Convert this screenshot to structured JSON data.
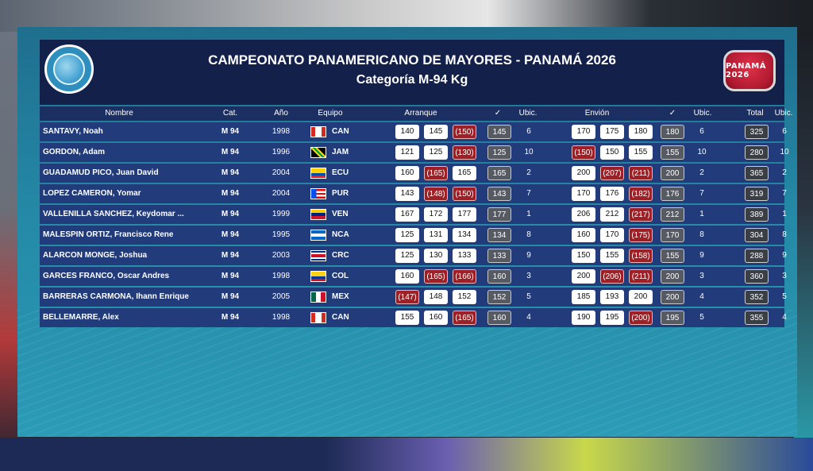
{
  "header": {
    "title": "CAMPEONATO PANAMERICANO DE MAYORES - PANAMÁ 2026",
    "subtitle": "Categoría M-94 Kg",
    "logo_right_text": "PANAMÁ 2026"
  },
  "columns": {
    "name": "Nombre",
    "cat": "Cat.",
    "year": "Año",
    "team": "Equipo",
    "snatch": "Arranque",
    "snatch_check": "✓",
    "snatch_rank": "Ubic.",
    "cj": "Envión",
    "cj_check": "✓",
    "cj_rank": "Ubic.",
    "total": "Total",
    "total_rank": "Ubic."
  },
  "colors": {
    "good_lift": "#ffffff",
    "no_lift": "#9e1f25",
    "best_lift": "#555a63"
  },
  "rows": [
    {
      "name": "SANTAVY, Noah",
      "cat": "M 94",
      "year": "1998",
      "team": "CAN",
      "flag": "can",
      "snatch": [
        {
          "v": "140",
          "ok": true
        },
        {
          "v": "145",
          "ok": true
        },
        {
          "v": "(150)",
          "ok": false
        }
      ],
      "snatch_best": "145",
      "snatch_rank": "6",
      "cj": [
        {
          "v": "170",
          "ok": true
        },
        {
          "v": "175",
          "ok": true
        },
        {
          "v": "180",
          "ok": true
        }
      ],
      "cj_best": "180",
      "cj_rank": "6",
      "total": "325",
      "total_rank": "6"
    },
    {
      "name": "GORDON, Adam",
      "cat": "M 94",
      "year": "1996",
      "team": "JAM",
      "flag": "jam",
      "snatch": [
        {
          "v": "121",
          "ok": true
        },
        {
          "v": "125",
          "ok": true
        },
        {
          "v": "(130)",
          "ok": false
        }
      ],
      "snatch_best": "125",
      "snatch_rank": "10",
      "cj": [
        {
          "v": "(150)",
          "ok": false
        },
        {
          "v": "150",
          "ok": true
        },
        {
          "v": "155",
          "ok": true
        }
      ],
      "cj_best": "155",
      "cj_rank": "10",
      "total": "280",
      "total_rank": "10"
    },
    {
      "name": "GUADAMUD PICO, Juan David",
      "cat": "M 94",
      "year": "2004",
      "team": "ECU",
      "flag": "ecu",
      "snatch": [
        {
          "v": "160",
          "ok": true
        },
        {
          "v": "(165)",
          "ok": false
        },
        {
          "v": "165",
          "ok": true
        }
      ],
      "snatch_best": "165",
      "snatch_rank": "2",
      "cj": [
        {
          "v": "200",
          "ok": true
        },
        {
          "v": "(207)",
          "ok": false
        },
        {
          "v": "(211)",
          "ok": false
        }
      ],
      "cj_best": "200",
      "cj_rank": "2",
      "total": "365",
      "total_rank": "2"
    },
    {
      "name": "LOPEZ CAMERON, Yomar",
      "cat": "M 94",
      "year": "2004",
      "team": "PUR",
      "flag": "pur",
      "snatch": [
        {
          "v": "143",
          "ok": true
        },
        {
          "v": "(148)",
          "ok": false
        },
        {
          "v": "(150)",
          "ok": false
        }
      ],
      "snatch_best": "143",
      "snatch_rank": "7",
      "cj": [
        {
          "v": "170",
          "ok": true
        },
        {
          "v": "176",
          "ok": true
        },
        {
          "v": "(182)",
          "ok": false
        }
      ],
      "cj_best": "176",
      "cj_rank": "7",
      "total": "319",
      "total_rank": "7"
    },
    {
      "name": "VALLENILLA SANCHEZ, Keydomar ...",
      "cat": "M 94",
      "year": "1999",
      "team": "VEN",
      "flag": "ven",
      "snatch": [
        {
          "v": "167",
          "ok": true
        },
        {
          "v": "172",
          "ok": true
        },
        {
          "v": "177",
          "ok": true
        }
      ],
      "snatch_best": "177",
      "snatch_rank": "1",
      "cj": [
        {
          "v": "206",
          "ok": true
        },
        {
          "v": "212",
          "ok": true
        },
        {
          "v": "(217)",
          "ok": false
        }
      ],
      "cj_best": "212",
      "cj_rank": "1",
      "total": "389",
      "total_rank": "1"
    },
    {
      "name": "MALESPIN ORTIZ, Francisco Rene",
      "cat": "M 94",
      "year": "1995",
      "team": "NCA",
      "flag": "nca",
      "snatch": [
        {
          "v": "125",
          "ok": true
        },
        {
          "v": "131",
          "ok": true
        },
        {
          "v": "134",
          "ok": true
        }
      ],
      "snatch_best": "134",
      "snatch_rank": "8",
      "cj": [
        {
          "v": "160",
          "ok": true
        },
        {
          "v": "170",
          "ok": true
        },
        {
          "v": "(175)",
          "ok": false
        }
      ],
      "cj_best": "170",
      "cj_rank": "8",
      "total": "304",
      "total_rank": "8"
    },
    {
      "name": "ALARCON MONGE, Joshua",
      "cat": "M 94",
      "year": "2003",
      "team": "CRC",
      "flag": "crc",
      "snatch": [
        {
          "v": "125",
          "ok": true
        },
        {
          "v": "130",
          "ok": true
        },
        {
          "v": "133",
          "ok": true
        }
      ],
      "snatch_best": "133",
      "snatch_rank": "9",
      "cj": [
        {
          "v": "150",
          "ok": true
        },
        {
          "v": "155",
          "ok": true
        },
        {
          "v": "(158)",
          "ok": false
        }
      ],
      "cj_best": "155",
      "cj_rank": "9",
      "total": "288",
      "total_rank": "9"
    },
    {
      "name": "GARCES FRANCO, Oscar Andres",
      "cat": "M 94",
      "year": "1998",
      "team": "COL",
      "flag": "col",
      "snatch": [
        {
          "v": "160",
          "ok": true
        },
        {
          "v": "(165)",
          "ok": false
        },
        {
          "v": "(166)",
          "ok": false
        }
      ],
      "snatch_best": "160",
      "snatch_rank": "3",
      "cj": [
        {
          "v": "200",
          "ok": true
        },
        {
          "v": "(206)",
          "ok": false
        },
        {
          "v": "(211)",
          "ok": false
        }
      ],
      "cj_best": "200",
      "cj_rank": "3",
      "total": "360",
      "total_rank": "3"
    },
    {
      "name": "BARRERAS CARMONA, Ihann Enrique",
      "cat": "M 94",
      "year": "2005",
      "team": "MEX",
      "flag": "mex",
      "snatch": [
        {
          "v": "(147)",
          "ok": false
        },
        {
          "v": "148",
          "ok": true
        },
        {
          "v": "152",
          "ok": true
        }
      ],
      "snatch_best": "152",
      "snatch_rank": "5",
      "cj": [
        {
          "v": "185",
          "ok": true
        },
        {
          "v": "193",
          "ok": true
        },
        {
          "v": "200",
          "ok": true
        }
      ],
      "cj_best": "200",
      "cj_rank": "4",
      "total": "352",
      "total_rank": "5"
    },
    {
      "name": "BELLEMARRE, Alex",
      "cat": "M 94",
      "year": "1998",
      "team": "CAN",
      "flag": "can",
      "snatch": [
        {
          "v": "155",
          "ok": true
        },
        {
          "v": "160",
          "ok": true
        },
        {
          "v": "(165)",
          "ok": false
        }
      ],
      "snatch_best": "160",
      "snatch_rank": "4",
      "cj": [
        {
          "v": "190",
          "ok": true
        },
        {
          "v": "195",
          "ok": true
        },
        {
          "v": "(200)",
          "ok": false
        }
      ],
      "cj_best": "195",
      "cj_rank": "5",
      "total": "355",
      "total_rank": "4"
    }
  ]
}
